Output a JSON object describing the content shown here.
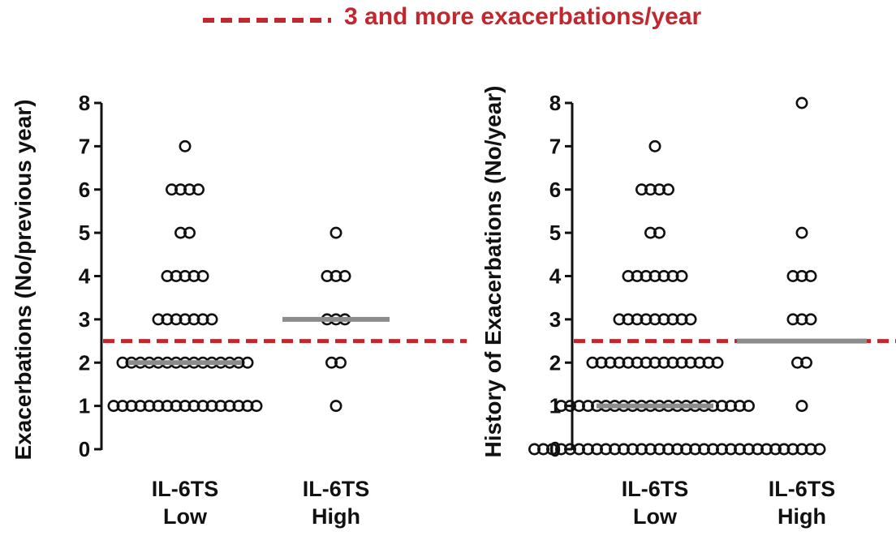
{
  "legend": {
    "label": "3 and more exacerbations/year",
    "line_color": "#c1272d"
  },
  "colors": {
    "threshold": "#c1272d",
    "median": "#8c8c8c",
    "marker": "#111111"
  },
  "chart_data": [
    {
      "type": "scatter",
      "ylabel": "Exacerbations (No/previous year)",
      "ylim": [
        0,
        8
      ],
      "yticks": [
        0,
        1,
        2,
        3,
        4,
        5,
        6,
        7,
        8
      ],
      "threshold": 2.5,
      "categories": [
        {
          "line1": "IL-6TS",
          "line2": "Low",
          "median": 2,
          "points": [
            {
              "y": 7,
              "n": 1
            },
            {
              "y": 6,
              "n": 4
            },
            {
              "y": 5,
              "n": 2
            },
            {
              "y": 4,
              "n": 5
            },
            {
              "y": 3,
              "n": 7
            },
            {
              "y": 2,
              "n": 15
            },
            {
              "y": 1,
              "n": 17
            }
          ]
        },
        {
          "line1": "IL-6TS",
          "line2": "High",
          "median": 3,
          "points": [
            {
              "y": 5,
              "n": 1
            },
            {
              "y": 4,
              "n": 3
            },
            {
              "y": 3,
              "n": 3
            },
            {
              "y": 2,
              "n": 2
            },
            {
              "y": 1,
              "n": 1
            }
          ]
        }
      ]
    },
    {
      "type": "scatter",
      "ylabel": "History of Exacerbations (No/year)",
      "ylim": [
        0,
        8
      ],
      "yticks": [
        0,
        1,
        2,
        3,
        4,
        5,
        6,
        7,
        8
      ],
      "threshold": 2.5,
      "categories": [
        {
          "line1": "IL-6TS",
          "line2": "Low",
          "median": 1,
          "points": [
            {
              "y": 7,
              "n": 1
            },
            {
              "y": 6,
              "n": 4
            },
            {
              "y": 5,
              "n": 2
            },
            {
              "y": 4,
              "n": 7
            },
            {
              "y": 3,
              "n": 9
            },
            {
              "y": 2,
              "n": 15
            },
            {
              "y": 1,
              "n": 22
            },
            {
              "y": 0,
              "n": 28
            }
          ]
        },
        {
          "line1": "IL-6TS",
          "line2": "High",
          "median": 2.5,
          "points": [
            {
              "y": 8,
              "n": 1
            },
            {
              "y": 5,
              "n": 1
            },
            {
              "y": 4,
              "n": 3
            },
            {
              "y": 3,
              "n": 3
            },
            {
              "y": 2,
              "n": 2
            },
            {
              "y": 1,
              "n": 1
            },
            {
              "y": 0,
              "n": 5
            }
          ]
        }
      ]
    }
  ]
}
